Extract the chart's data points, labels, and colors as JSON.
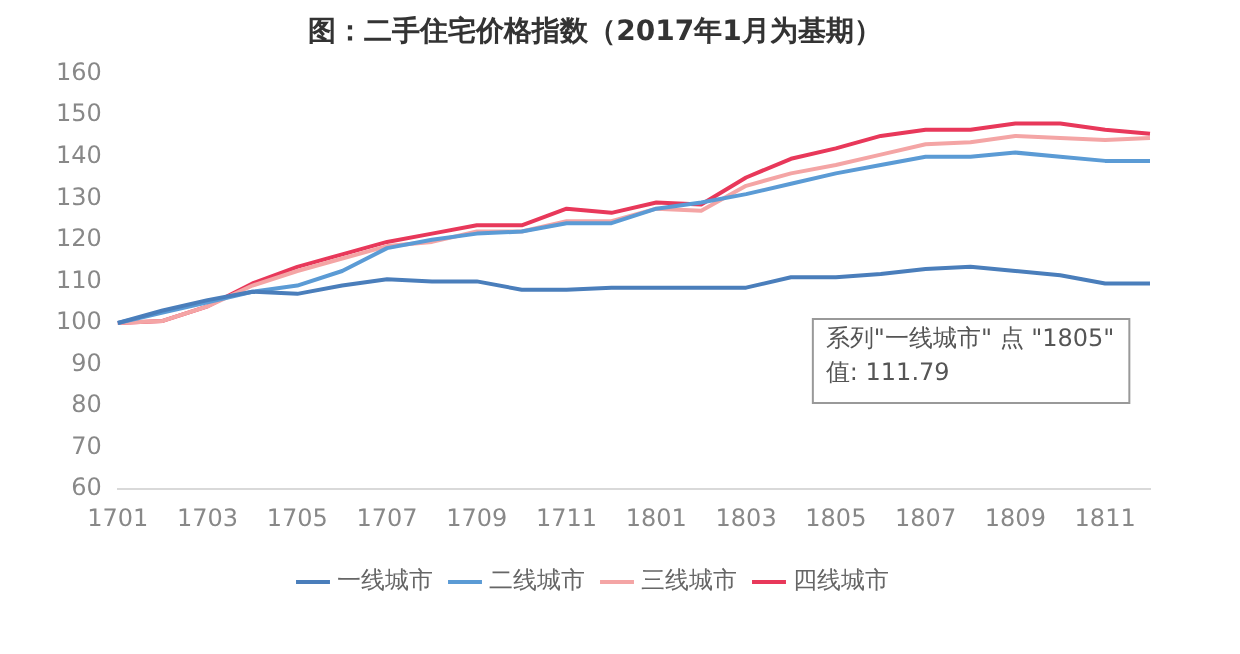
{
  "chart_data": {
    "type": "line",
    "title": "图：二手住宅价格指数（2017年1月为基期）",
    "categories": [
      "1701",
      null,
      "1703",
      null,
      "1705",
      null,
      "1707",
      null,
      "1709",
      null,
      "1711",
      null,
      "1801",
      null,
      "1803",
      null,
      "1805",
      null,
      "1807",
      null,
      "1809",
      null,
      "1811",
      null
    ],
    "series": [
      {
        "name": "一线城市",
        "color": "#4a7ebb",
        "values": [
          100,
          103,
          105.5,
          107.5,
          107,
          109,
          110.5,
          110,
          110,
          108,
          108,
          108.5,
          108.5,
          108.5,
          108.5,
          111,
          111,
          111.79,
          113,
          113.5,
          112.5,
          111.5,
          109.5,
          109.5
        ]
      },
      {
        "name": "二线城市",
        "color": "#5b9bd5",
        "values": [
          100,
          102.5,
          105,
          107.5,
          109,
          112.5,
          118,
          120,
          121.5,
          122,
          124,
          124,
          127.5,
          129,
          131,
          133.5,
          136,
          138,
          140,
          140,
          141,
          140,
          139,
          139
        ]
      },
      {
        "name": "三线城市",
        "color": "#f4a5a5",
        "values": [
          100,
          100.5,
          104,
          109,
          112.5,
          115.5,
          118.5,
          119.5,
          122,
          122,
          124.5,
          124.5,
          127.5,
          127,
          133,
          136,
          138,
          140.5,
          143,
          143.5,
          145,
          144.5,
          144,
          144.5
        ]
      },
      {
        "name": "四线城市",
        "color": "#e8385a",
        "values": [
          100,
          100.5,
          104,
          109.5,
          113.5,
          116.5,
          119.5,
          121.5,
          123.5,
          123.5,
          127.5,
          126.5,
          129,
          128.5,
          135,
          139.5,
          142,
          145,
          146.5,
          146.5,
          148,
          148,
          146.5,
          145.5
        ]
      }
    ],
    "ylim": [
      60,
      160
    ],
    "yticks": [
      60,
      70,
      80,
      90,
      100,
      110,
      120,
      130,
      140,
      150,
      160
    ],
    "grid": false,
    "legend": "bottom",
    "marker": "none",
    "line_style": "solid",
    "annotations": [
      {
        "text": "系列\"一线城市\" 点 \"1805\"\n值: 111.79",
        "x": "1805",
        "y": 111.79
      }
    ]
  }
}
